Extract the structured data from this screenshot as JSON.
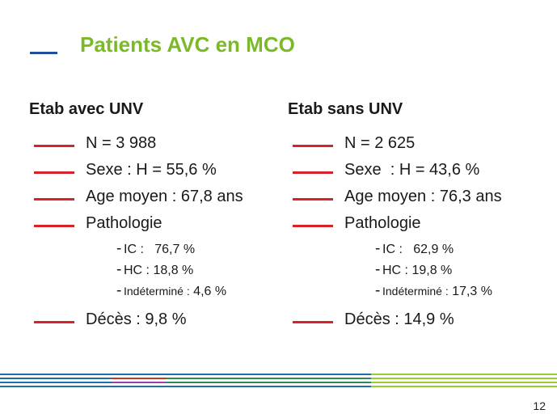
{
  "title": "Patients AVC en MCO",
  "columns": [
    {
      "heading": "Etab avec UNV",
      "n": "N = 3 988",
      "sexe": "Sexe : H = 55,6 %",
      "age": "Age moyen : 67,8 ans",
      "pathologie": "Pathologie",
      "sub": [
        {
          "label": "IC :",
          "value": "76,7 %"
        },
        {
          "label": "HC : 18,8 %",
          "value": ""
        },
        {
          "label": "Indéterminé :",
          "value": "4,6 %"
        }
      ],
      "deces": "Décès : 9,8 %"
    },
    {
      "heading": "Etab sans UNV",
      "n": "N = 2 625",
      "sexe": "Sexe  : H = 43,6 %",
      "age": "Age moyen : 76,3 ans",
      "pathologie": "Pathologie",
      "sub": [
        {
          "label": "IC :",
          "value": "62,9 %"
        },
        {
          "label": "HC : 19,8 %",
          "value": ""
        },
        {
          "label": "Indéterminé :",
          "value": "17,3 %"
        }
      ],
      "deces": "Décès : 14,9 %"
    }
  ],
  "page_number": "12",
  "colors": {
    "title": "#7cb928",
    "title_dash": "#1f4e9c",
    "bullet": "#d6232a",
    "stripe_blue": "#1f6fa8",
    "stripe_green": "#2e8b57",
    "stripe_lime": "#9acd32",
    "stripe_red": "#c0392b"
  }
}
